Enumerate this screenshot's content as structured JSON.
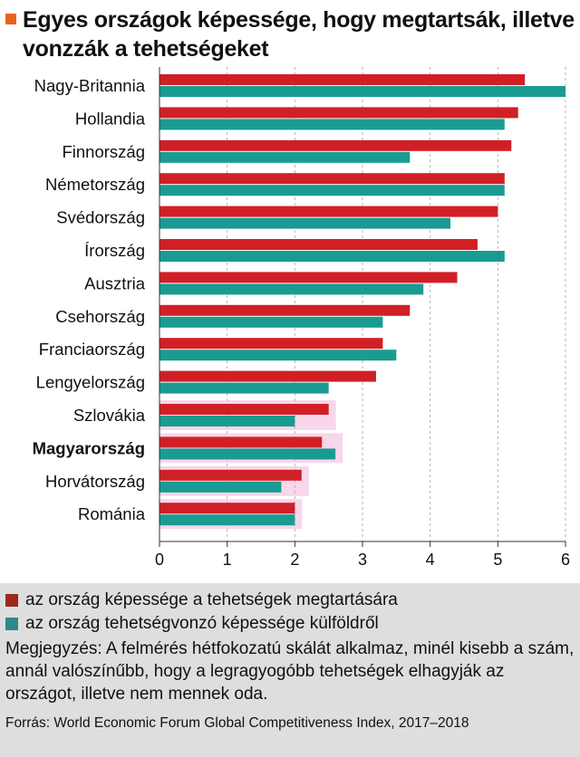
{
  "title": "Egyes országok képessége, hogy megtartsák, illetve vonzzák a tehetségeket",
  "colors": {
    "accent": "#e8641e",
    "retain": "#d11f26",
    "attract": "#1a9b91",
    "retain_legend": "#9b2a1c",
    "attract_legend": "#2a8b8a",
    "highlight": "#f7d7ea",
    "footer_bg": "#dedede",
    "grid": "#b5b5b5"
  },
  "legend": [
    {
      "label": "az ország képessége a tehetségek megtartására",
      "color_key": "retain_legend"
    },
    {
      "label": "az ország tehetségvonzó képessége külföldről",
      "color_key": "attract_legend"
    }
  ],
  "note": "Megjegyzés: A felmérés hétfokozatú skálát alkalmaz, minél kisebb a szám, annál valószínűbb, hogy a legragyogóbb tehetségek elhagyják az országot, illetve nem mennek oda.",
  "source": "Forrás: World Economic Forum Global Competitiveness Index, 2017–2018",
  "chart_data": {
    "type": "bar",
    "orientation": "horizontal",
    "categories": [
      "Nagy-Britannia",
      "Hollandia",
      "Finnország",
      "Németország",
      "Svédország",
      "Írország",
      "Ausztria",
      "Csehország",
      "Franciaország",
      "Lengyelország",
      "Szlovákia",
      "Magyarország",
      "Horvátország",
      "Románia"
    ],
    "bold_categories": [
      "Magyarország"
    ],
    "highlighted_categories": [
      "Szlovákia",
      "Magyarország",
      "Horvátország",
      "Románia"
    ],
    "series": [
      {
        "name": "az ország képessége a tehetségek megtartására",
        "color_key": "retain",
        "values": [
          5.4,
          5.3,
          5.2,
          5.1,
          5.0,
          4.7,
          4.4,
          3.7,
          3.3,
          3.2,
          2.5,
          2.4,
          2.1,
          2.0
        ]
      },
      {
        "name": "az ország tehetségvonzó képessége külföldről",
        "color_key": "attract",
        "values": [
          6.0,
          5.1,
          3.7,
          5.1,
          4.3,
          5.1,
          3.9,
          3.3,
          3.5,
          2.5,
          2.0,
          2.6,
          1.8,
          2.0
        ]
      }
    ],
    "xlim": [
      0,
      6
    ],
    "xticks": [
      "0",
      "1",
      "2",
      "3",
      "4",
      "5",
      "6"
    ],
    "xlabel": "",
    "ylabel": "",
    "grid": "vertical dashed"
  }
}
